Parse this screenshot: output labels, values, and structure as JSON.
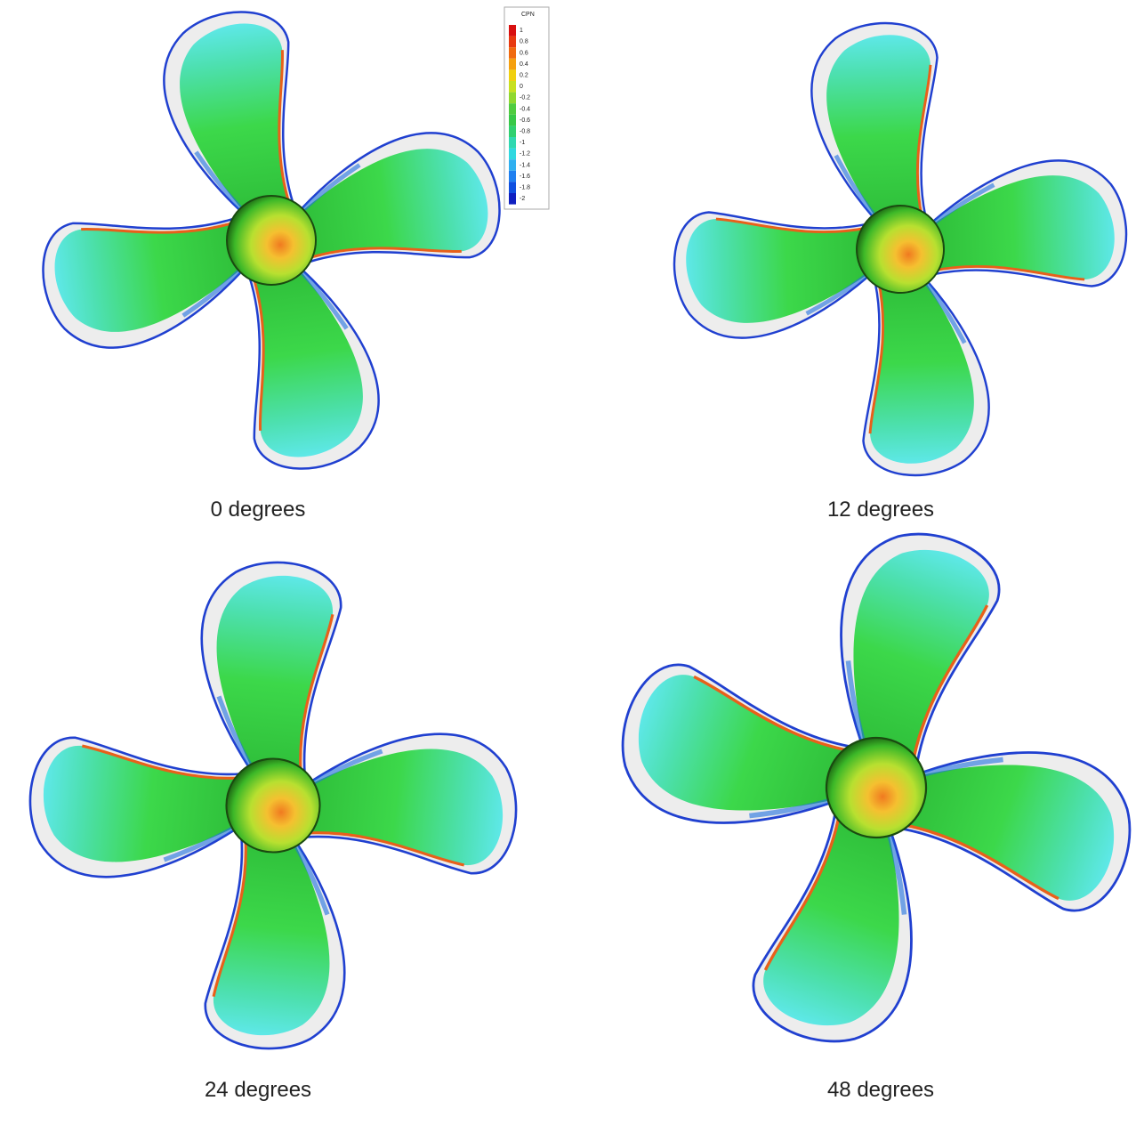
{
  "legend": {
    "title": "CPN",
    "labels": [
      "1",
      "0.8",
      "0.6",
      "0.4",
      "0.2",
      "0",
      "-0.2",
      "-0.4",
      "-0.6",
      "-0.8",
      "-1",
      "-1.2",
      "-1.4",
      "-1.6",
      "-1.8",
      "-2"
    ]
  },
  "panels": [
    {
      "caption": "0 degrees"
    },
    {
      "caption": "12 degrees"
    },
    {
      "caption": "24 degrees"
    },
    {
      "caption": "48 degrees"
    }
  ]
}
